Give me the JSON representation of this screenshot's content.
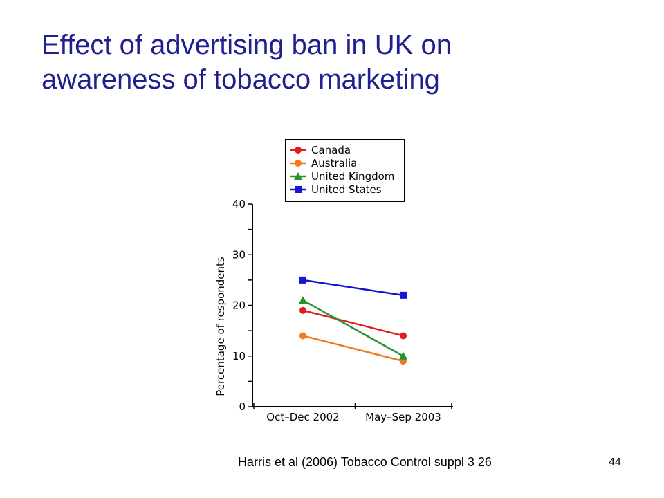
{
  "title": {
    "line1": "Effect of advertising ban in UK on",
    "line2": "awareness of tobacco marketing"
  },
  "citation": "Harris et al (2006) Tobacco Control suppl  3   26",
  "page_number": "44",
  "chart_data": {
    "type": "line",
    "title": "",
    "xlabel": "",
    "ylabel": "Percentage of respondents",
    "categories": [
      "Oct–Dec 2002",
      "May–Sep 2003"
    ],
    "ylim": [
      0,
      40
    ],
    "yticks": [
      0,
      10,
      20,
      30,
      40
    ],
    "grid": false,
    "legend_position": "top",
    "series": [
      {
        "name": "Canada",
        "values": [
          19,
          14
        ],
        "color": "#e31b1b",
        "marker": "circle"
      },
      {
        "name": "Australia",
        "values": [
          14,
          9
        ],
        "color": "#f07a1a",
        "marker": "circle"
      },
      {
        "name": "United Kingdom",
        "values": [
          21,
          10
        ],
        "color": "#22922a",
        "marker": "triangle"
      },
      {
        "name": "United States",
        "values": [
          25,
          22
        ],
        "color": "#1616d0",
        "marker": "square"
      }
    ]
  }
}
